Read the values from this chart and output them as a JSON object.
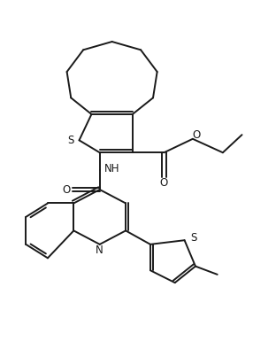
{
  "background_color": "#ffffff",
  "line_color": "#1a1a1a",
  "line_width": 1.4,
  "figsize": [
    3.12,
    3.94
  ],
  "dpi": 100,
  "xlim": [
    0,
    10
  ],
  "ylim": [
    0,
    12.6
  ]
}
